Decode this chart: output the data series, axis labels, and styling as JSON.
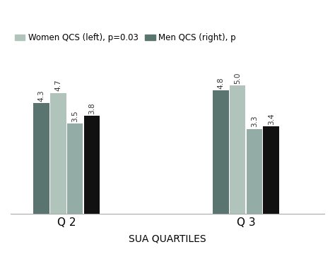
{
  "groups": [
    "Q 2",
    "Q 3"
  ],
  "bar_labels": [
    [
      "4.3",
      "4.7",
      "3.5",
      "3.8"
    ],
    [
      "4.8",
      "5.0",
      "3.3",
      "3.4"
    ]
  ],
  "bar_values": [
    [
      4.3,
      4.7,
      3.5,
      3.8
    ],
    [
      4.8,
      5.0,
      3.3,
      3.4
    ]
  ],
  "series_colors": {
    "men_dark_gray": "#5a7570",
    "women_light": "#b0c4bc",
    "women_medium": "#93aca6",
    "men_black": "#111111"
  },
  "legend_labels": [
    "Women QCS (left), p=0.03",
    "Men QCS (right), p"
  ],
  "xlabel": "SUA QUARTILES",
  "ylim": [
    0,
    6.2
  ],
  "background_color": "#ffffff",
  "bar_width": 0.15,
  "group_centers": [
    1.0,
    2.6
  ],
  "xlim": [
    0.5,
    3.3
  ]
}
